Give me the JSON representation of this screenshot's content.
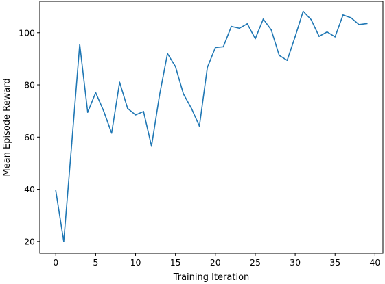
{
  "chart_data": {
    "type": "line",
    "xlabel": "Training Iteration",
    "ylabel": "Mean Episode Reward",
    "xlim": [
      -2,
      41
    ],
    "ylim": [
      15.5,
      112
    ],
    "xticks": [
      0,
      5,
      10,
      15,
      20,
      25,
      30,
      35,
      40
    ],
    "yticks": [
      20,
      40,
      60,
      80,
      100
    ],
    "grid": false,
    "line_color": "#1f77b4",
    "series": [
      {
        "x": [
          0,
          1,
          2,
          3,
          4,
          5,
          6,
          7,
          8,
          9,
          10,
          11,
          12,
          13,
          14,
          15,
          16,
          17,
          18,
          19,
          20,
          21,
          22,
          23,
          24,
          25,
          26,
          27,
          28,
          29,
          30,
          31,
          32,
          33,
          34,
          35,
          36,
          37,
          38,
          39
        ],
        "values": [
          39.5,
          20.0,
          57.5,
          95.5,
          69.5,
          77.0,
          70.0,
          61.5,
          81.0,
          71.0,
          68.5,
          69.8,
          56.5,
          76.0,
          92.0,
          87.0,
          76.5,
          71.0,
          64.2,
          86.7,
          94.3,
          94.6,
          102.4,
          101.7,
          103.4,
          97.7,
          105.2,
          101.1,
          91.3,
          89.4,
          98.5,
          108.2,
          105.0,
          98.6,
          100.3,
          98.4,
          106.8,
          105.7,
          103.1,
          103.5
        ]
      }
    ]
  }
}
